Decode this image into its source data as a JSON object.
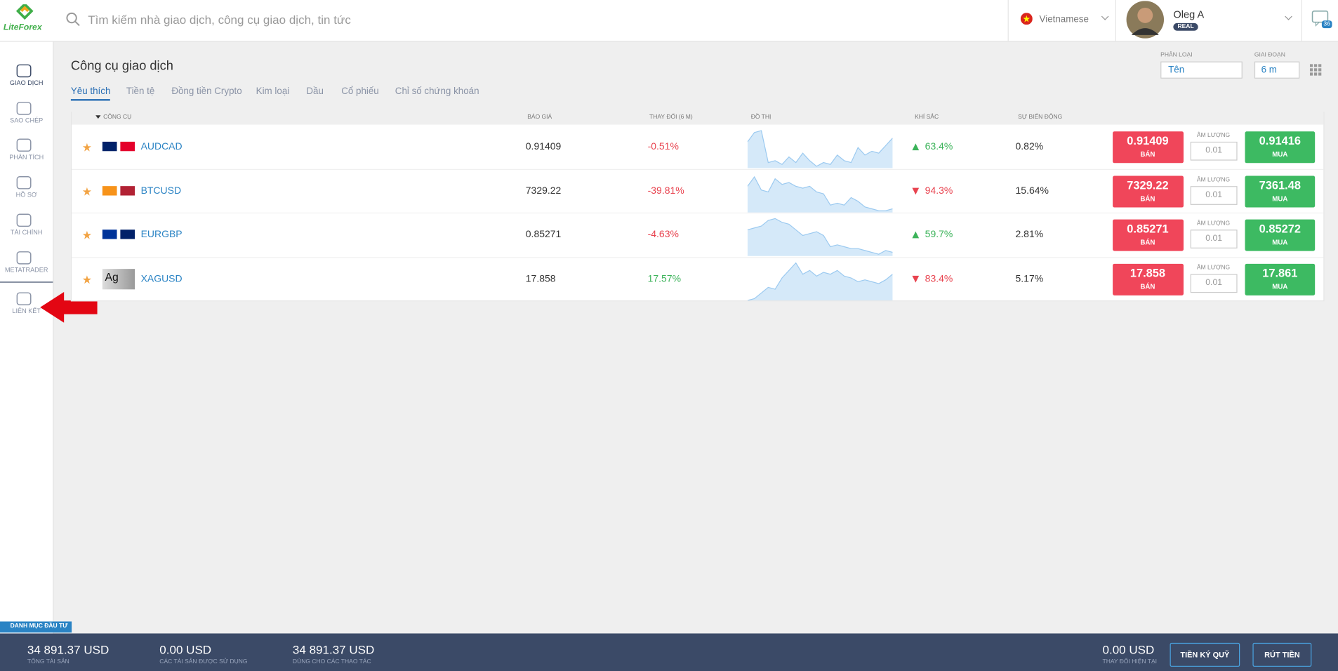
{
  "header": {
    "logo": "LiteForex",
    "search_placeholder": "Tìm kiếm nhà giao dịch, công cụ giao dịch, tin tức",
    "language": "Vietnamese",
    "user_name": "Oleg A",
    "account_type": "REAL",
    "notifications": "36"
  },
  "sidebar": [
    "GIAO DỊCH",
    "SAO CHÉP",
    "PHÂN TÍCH",
    "HỒ SƠ",
    "TÀI CHÍNH",
    "METATRADER",
    "LIÊN KẾT"
  ],
  "page": {
    "title": "Công cụ giao dịch",
    "tabs": [
      "Yêu thích",
      "Tiền tệ",
      "Đồng tiền Crypto",
      "Kim loại",
      "Dầu",
      "Cổ phiếu",
      "Chỉ số chứng khoán"
    ],
    "filter_label": "PHÂN LOẠI",
    "filter_value": "Tên",
    "period_label": "GIAI ĐOẠN",
    "period_value": "6 m"
  },
  "table": {
    "columns": [
      "CÔNG CỤ",
      "BÁO GIÁ",
      "THAY ĐỔI (6 M)",
      "ĐỒ THỊ",
      "KHÍ SẮC",
      "SỰ BIẾN ĐỘNG"
    ],
    "sell_label": "BÁN",
    "buy_label": "MUA",
    "volume_label": "ÂM LƯỢNG",
    "rows": [
      {
        "symbol": "AUDCAD",
        "quote": "0.91409",
        "change": "-0.51%",
        "sentiment_trend": "up",
        "sentiment": "63.4%",
        "volatility": "0.82%",
        "sell": "0.91409",
        "volume": "0.01",
        "buy": "0.91416",
        "chart": [
          70,
          95,
          100,
          15,
          20,
          10,
          30,
          15,
          40,
          20,
          5,
          15,
          10,
          35,
          20,
          15,
          55,
          35,
          45,
          40,
          60,
          80
        ]
      },
      {
        "symbol": "BTCUSD",
        "quote": "7329.22",
        "change": "-39.81%",
        "sentiment_trend": "down",
        "sentiment": "94.3%",
        "volatility": "15.64%",
        "sell": "7329.22",
        "volume": "0.01",
        "buy": "7361.48",
        "chart": [
          70,
          95,
          60,
          55,
          90,
          75,
          80,
          70,
          65,
          70,
          55,
          50,
          20,
          25,
          20,
          40,
          30,
          15,
          10,
          5,
          5,
          10
        ]
      },
      {
        "symbol": "EURGBP",
        "quote": "0.85271",
        "change": "-4.63%",
        "sentiment_trend": "up",
        "sentiment": "59.7%",
        "volatility": "2.81%",
        "sell": "0.85271",
        "volume": "0.01",
        "buy": "0.85272",
        "chart": [
          70,
          75,
          80,
          95,
          100,
          90,
          85,
          70,
          55,
          60,
          65,
          55,
          25,
          30,
          25,
          20,
          20,
          15,
          10,
          5,
          15,
          10
        ]
      },
      {
        "symbol": "XAGUSD",
        "icon": "Ag",
        "quote": "17.858",
        "change": "17.57%",
        "sentiment_trend": "down",
        "sentiment": "83.4%",
        "volatility": "5.17%",
        "sell": "17.858",
        "volume": "0.01",
        "buy": "17.861",
        "chart": [
          0,
          5,
          20,
          35,
          30,
          60,
          80,
          100,
          70,
          80,
          65,
          75,
          70,
          80,
          65,
          60,
          50,
          55,
          50,
          45,
          55,
          70
        ]
      }
    ]
  },
  "footer": {
    "tab": "DANH MỤC ĐẦU TƯ",
    "stats": [
      {
        "value": "34 891.37 USD",
        "label": "TỔNG TÀI SẢN"
      },
      {
        "value": "0.00 USD",
        "label": "CÁC TÀI SẢN ĐƯỢC SỬ DỤNG"
      },
      {
        "value": "34 891.37 USD",
        "label": "DÙNG CHO CÁC THAO TÁC"
      }
    ],
    "current_change": {
      "value": "0.00 USD",
      "label": "THAY ĐỔI HIỆN TẠI"
    },
    "buttons": [
      "TIỀN KÝ QUỸ",
      "RÚT TIỀN"
    ]
  }
}
